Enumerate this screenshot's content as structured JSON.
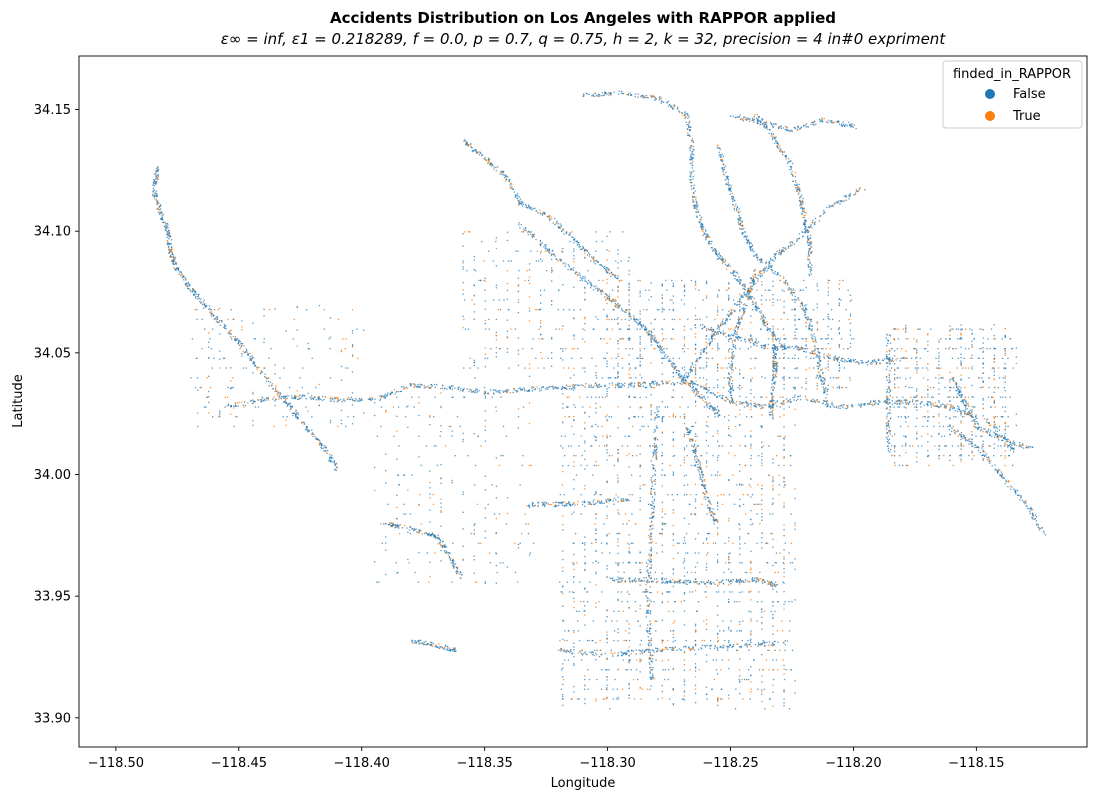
{
  "chart_data": {
    "type": "scatter",
    "title": "Accidents Distribution on Los Angeles with RAPPOR applied",
    "subtitle": "ε∞ = inf, ε1 = 0.218289, f = 0.0, p = 0.7, q = 0.75, h = 2, k = 32, precision = 4 in#0 expriment",
    "xlabel": "Longitude",
    "ylabel": "Latitude",
    "xlim": [
      -118.515,
      -118.105
    ],
    "ylim": [
      33.888,
      34.172
    ],
    "xticks": [
      -118.5,
      -118.45,
      -118.4,
      -118.35,
      -118.3,
      -118.25,
      -118.2,
      -118.15
    ],
    "xtick_labels": [
      "−118.50",
      "−118.45",
      "−118.40",
      "−118.35",
      "−118.30",
      "−118.25",
      "−118.20",
      "−118.15"
    ],
    "yticks": [
      33.9,
      33.95,
      34.0,
      34.05,
      34.1,
      34.15
    ],
    "ytick_labels": [
      "33.90",
      "33.95",
      "34.00",
      "34.05",
      "34.10",
      "34.15"
    ],
    "grid": false,
    "legend": {
      "title": "finded_in_RAPPOR",
      "placement": "top-right",
      "entries": [
        {
          "name": "False",
          "color": "#1f77b4"
        },
        {
          "name": "True",
          "color": "#ff7f0e"
        }
      ]
    },
    "series": [
      {
        "name": "False",
        "color": "#1f77b4",
        "paths": [
          [
            [
              -118.483,
              34.127
            ],
            [
              -118.485,
              34.117
            ],
            [
              -118.482,
              34.108
            ],
            [
              -118.479,
              34.1
            ],
            [
              -118.478,
              34.092
            ],
            [
              -118.476,
              34.086
            ],
            [
              -118.471,
              34.078
            ],
            [
              -118.465,
              34.071
            ],
            [
              -118.457,
              34.062
            ],
            [
              -118.449,
              34.053
            ],
            [
              -118.44,
              34.041
            ],
            [
              -118.431,
              34.03
            ],
            [
              -118.424,
              34.021
            ],
            [
              -118.416,
              34.012
            ],
            [
              -118.41,
              34.002
            ]
          ],
          [
            [
              -118.455,
              34.028
            ],
            [
              -118.44,
              34.031
            ],
            [
              -118.425,
              34.032
            ],
            [
              -118.41,
              34.031
            ],
            [
              -118.395,
              34.031
            ],
            [
              -118.38,
              34.037
            ],
            [
              -118.365,
              34.036
            ],
            [
              -118.35,
              34.034
            ],
            [
              -118.335,
              34.035
            ],
            [
              -118.32,
              34.036
            ],
            [
              -118.305,
              34.037
            ],
            [
              -118.29,
              34.037
            ],
            [
              -118.278,
              34.038
            ],
            [
              -118.265,
              34.038
            ],
            [
              -118.25,
              34.03
            ],
            [
              -118.236,
              34.028
            ],
            [
              -118.222,
              34.032
            ],
            [
              -118.205,
              34.028
            ],
            [
              -118.19,
              34.03
            ],
            [
              -118.175,
              34.03
            ],
            [
              -118.16,
              34.028
            ],
            [
              -118.145,
              34.022
            ],
            [
              -118.135,
              34.01
            ]
          ],
          [
            [
              -118.28,
              34.028
            ],
            [
              -118.281,
              34.01
            ],
            [
              -118.282,
              33.99
            ],
            [
              -118.283,
              33.97
            ],
            [
              -118.284,
              33.95
            ],
            [
              -118.283,
              33.93
            ],
            [
              -118.282,
              33.915
            ]
          ],
          [
            [
              -118.32,
              33.928
            ],
            [
              -118.3,
              33.926
            ],
            [
              -118.283,
              33.928
            ],
            [
              -118.265,
              33.929
            ],
            [
              -118.245,
              33.93
            ],
            [
              -118.228,
              33.931
            ]
          ],
          [
            [
              -118.3,
              33.957
            ],
            [
              -118.285,
              33.957
            ],
            [
              -118.27,
              33.956
            ],
            [
              -118.255,
              33.956
            ],
            [
              -118.24,
              33.957
            ],
            [
              -118.232,
              33.955
            ]
          ],
          [
            [
              -118.255,
              34.025
            ],
            [
              -118.262,
              34.032
            ],
            [
              -118.27,
              34.04
            ],
            [
              -118.277,
              34.05
            ],
            [
              -118.283,
              34.058
            ],
            [
              -118.29,
              34.065
            ],
            [
              -118.3,
              34.073
            ],
            [
              -118.312,
              34.082
            ],
            [
              -118.325,
              34.093
            ],
            [
              -118.337,
              34.104
            ]
          ],
          [
            [
              -118.27,
              34.038
            ],
            [
              -118.262,
              34.05
            ],
            [
              -118.255,
              34.06
            ],
            [
              -118.248,
              34.07
            ],
            [
              -118.24,
              34.08
            ],
            [
              -118.232,
              34.09
            ],
            [
              -118.222,
              34.098
            ],
            [
              -118.21,
              34.11
            ],
            [
              -118.196,
              34.118
            ]
          ],
          [
            [
              -118.25,
              34.03
            ],
            [
              -118.25,
              34.045
            ],
            [
              -118.248,
              34.06
            ],
            [
              -118.244,
              34.07
            ],
            [
              -118.24,
              34.085
            ]
          ],
          [
            [
              -118.31,
              34.156
            ],
            [
              -118.295,
              34.157
            ],
            [
              -118.28,
              34.155
            ],
            [
              -118.268,
              34.148
            ],
            [
              -118.266,
              34.135
            ],
            [
              -118.266,
              34.12
            ],
            [
              -118.264,
              34.108
            ],
            [
              -118.26,
              34.098
            ],
            [
              -118.255,
              34.09
            ],
            [
              -118.248,
              34.082
            ],
            [
              -118.24,
              34.07
            ],
            [
              -118.235,
              34.06
            ],
            [
              -118.228,
              34.052
            ]
          ],
          [
            [
              -118.358,
              34.137
            ],
            [
              -118.35,
              34.13
            ],
            [
              -118.342,
              34.123
            ],
            [
              -118.336,
              34.112
            ],
            [
              -118.325,
              34.107
            ],
            [
              -118.315,
              34.098
            ],
            [
              -118.305,
              34.088
            ],
            [
              -118.295,
              34.08
            ]
          ],
          [
            [
              -118.255,
              34.135
            ],
            [
              -118.252,
              34.122
            ],
            [
              -118.248,
              34.11
            ],
            [
              -118.245,
              34.1
            ],
            [
              -118.24,
              34.09
            ],
            [
              -118.228,
              34.08
            ],
            [
              -118.22,
              34.068
            ],
            [
              -118.216,
              34.055
            ],
            [
              -118.213,
              34.04
            ],
            [
              -118.21,
              34.028
            ]
          ],
          [
            [
              -118.25,
              34.148
            ],
            [
              -118.238,
              34.145
            ],
            [
              -118.225,
              34.142
            ],
            [
              -118.212,
              34.146
            ],
            [
              -118.198,
              34.143
            ]
          ],
          [
            [
              -118.24,
              34.148
            ],
            [
              -118.232,
              34.138
            ],
            [
              -118.226,
              34.128
            ],
            [
              -118.222,
              34.115
            ],
            [
              -118.22,
              34.105
            ],
            [
              -118.218,
              34.095
            ],
            [
              -118.218,
              34.082
            ]
          ],
          [
            [
              -118.265,
              34.062
            ],
            [
              -118.25,
              34.057
            ],
            [
              -118.236,
              34.053
            ],
            [
              -118.222,
              34.052
            ],
            [
              -118.208,
              34.048
            ],
            [
              -118.195,
              34.046
            ],
            [
              -118.18,
              34.048
            ]
          ],
          [
            [
              -118.232,
              34.053
            ],
            [
              -118.232,
              34.045
            ],
            [
              -118.233,
              34.035
            ],
            [
              -118.234,
              34.025
            ]
          ],
          [
            [
              -118.268,
              34.02
            ],
            [
              -118.265,
              34.01
            ],
            [
              -118.262,
              34.0
            ],
            [
              -118.26,
              33.99
            ],
            [
              -118.256,
              33.98
            ]
          ],
          [
            [
              -118.333,
              33.988
            ],
            [
              -118.32,
              33.988
            ],
            [
              -118.305,
              33.989
            ],
            [
              -118.292,
              33.99
            ]
          ],
          [
            [
              -118.39,
              33.98
            ],
            [
              -118.38,
              33.978
            ],
            [
              -118.37,
              33.975
            ],
            [
              -118.365,
              33.968
            ],
            [
              -118.36,
              33.958
            ]
          ],
          [
            [
              -118.38,
              33.932
            ],
            [
              -118.37,
              33.93
            ],
            [
              -118.362,
              33.928
            ]
          ],
          [
            [
              -118.162,
              34.02
            ],
            [
              -118.15,
              34.012
            ],
            [
              -118.14,
              34.0
            ],
            [
              -118.13,
              33.988
            ],
            [
              -118.122,
              33.975
            ]
          ],
          [
            [
              -118.186,
              34.058
            ],
            [
              -118.186,
              34.04
            ],
            [
              -118.186,
              34.025
            ],
            [
              -118.186,
              34.01
            ]
          ],
          [
            [
              -118.16,
              34.04
            ],
            [
              -118.155,
              34.03
            ],
            [
              -118.15,
              34.02
            ],
            [
              -118.14,
              34.015
            ],
            [
              -118.128,
              34.011
            ]
          ]
        ],
        "approx_point_count": 2600
      },
      {
        "name": "True",
        "color": "#ff7f0e",
        "approx_point_count": 650
      }
    ]
  }
}
